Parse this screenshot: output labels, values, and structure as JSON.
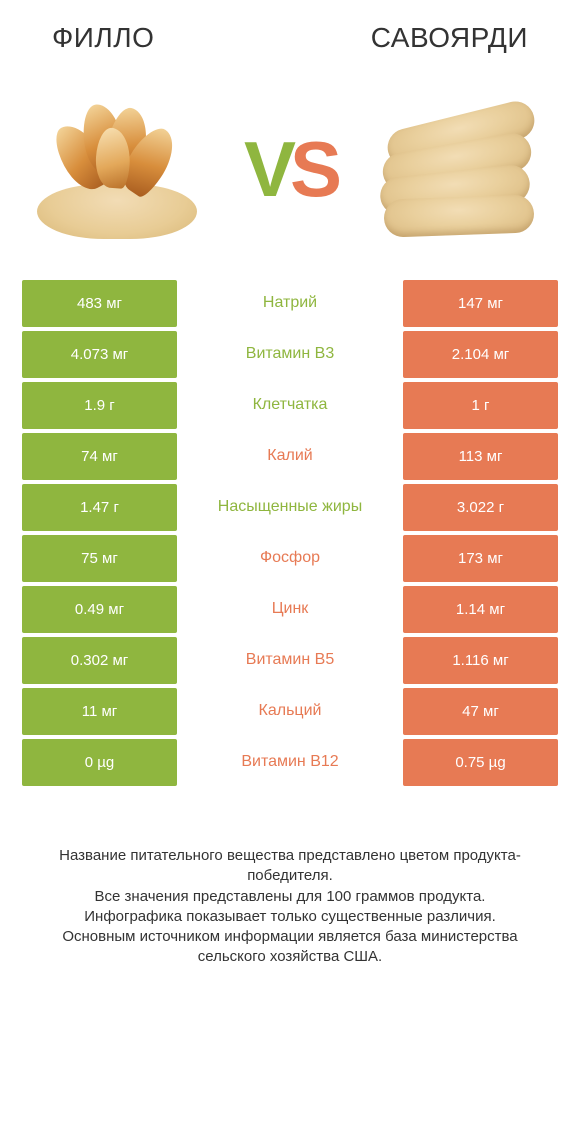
{
  "colors": {
    "left": "#8fb63f",
    "right": "#e77a54",
    "left_text": "#8fb63f",
    "right_text": "#e77a54",
    "body_text": "#333333",
    "background": "#ffffff"
  },
  "title_fontsize": 28,
  "vs_fontsize": 78,
  "table_fontsize": 15,
  "footer_fontsize": 15,
  "left": {
    "name": "ФИЛЛО"
  },
  "right": {
    "name": "САВОЯРДИ"
  },
  "vs": {
    "v": "V",
    "s": "S"
  },
  "rows": [
    {
      "left": "483 мг",
      "label": "Натрий",
      "right": "147 мг",
      "winner": "left"
    },
    {
      "left": "4.073 мг",
      "label": "Витамин B3",
      "right": "2.104 мг",
      "winner": "left"
    },
    {
      "left": "1.9 г",
      "label": "Клетчатка",
      "right": "1 г",
      "winner": "left"
    },
    {
      "left": "74 мг",
      "label": "Калий",
      "right": "113 мг",
      "winner": "right"
    },
    {
      "left": "1.47 г",
      "label": "Насыщенные жиры",
      "right": "3.022 г",
      "winner": "left"
    },
    {
      "left": "75 мг",
      "label": "Фосфор",
      "right": "173 мг",
      "winner": "right"
    },
    {
      "left": "0.49 мг",
      "label": "Цинк",
      "right": "1.14 мг",
      "winner": "right"
    },
    {
      "left": "0.302 мг",
      "label": "Витамин B5",
      "right": "1.116 мг",
      "winner": "right"
    },
    {
      "left": "11 мг",
      "label": "Кальций",
      "right": "47 мг",
      "winner": "right"
    },
    {
      "left": "0 µg",
      "label": "Витамин B12",
      "right": "0.75 µg",
      "winner": "right"
    }
  ],
  "footer": {
    "l1": "Название питательного вещества представлено цветом продукта-победителя.",
    "l2": "Все значения представлены для 100 граммов продукта.",
    "l3": "Инфографика показывает только существенные различия.",
    "l4": "Основным источником информации является база министерства сельского хозяйства США."
  }
}
